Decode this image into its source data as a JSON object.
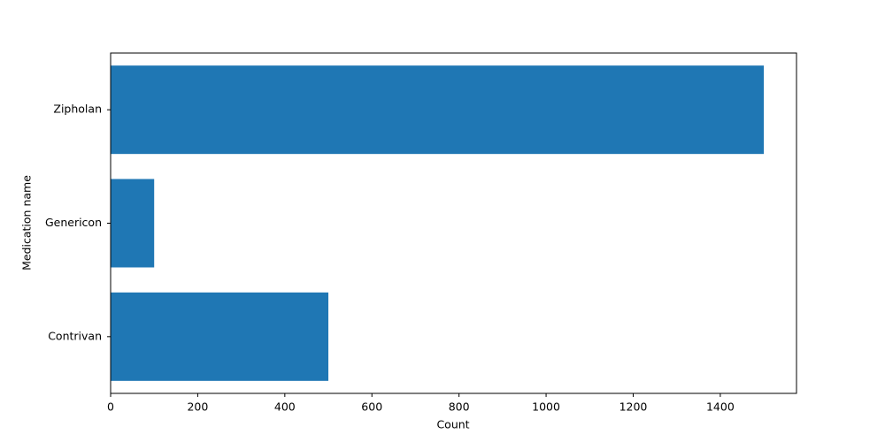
{
  "chart_data": {
    "type": "barh",
    "xlabel": "Count",
    "ylabel": "Medication name",
    "categories": [
      "Contrivan",
      "Genericon",
      "Zipholan"
    ],
    "values": [
      500,
      100,
      1500
    ],
    "color": "#1f77b4",
    "xlim": [
      0,
      1575
    ],
    "xticks": [
      0,
      200,
      400,
      600,
      800,
      1000,
      1200,
      1400
    ]
  }
}
